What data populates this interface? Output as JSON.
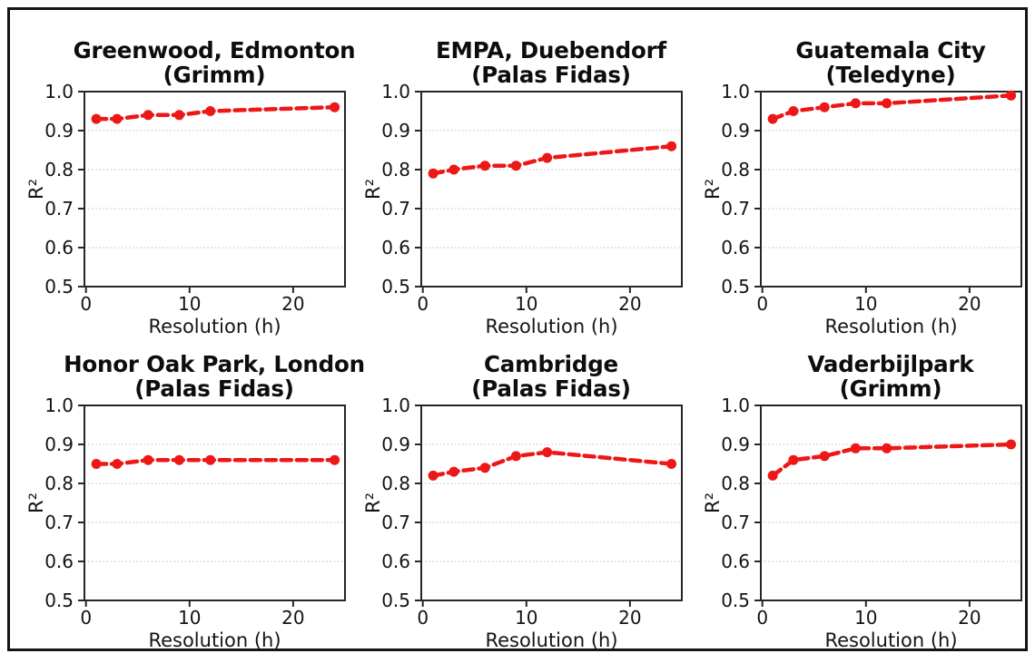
{
  "figure": {
    "background": "#ffffff",
    "border_color": "#141414",
    "line_color": "#ee1717",
    "grid_color": "#c9c9c9",
    "axis_color": "#262626",
    "text_color": "#141414",
    "xlabel": "Resolution (h)",
    "ylabel": "R²",
    "x_ticks": [
      0,
      10,
      20
    ],
    "x_tick_labels": [
      "0",
      "10",
      "20"
    ],
    "y_ticks": [
      0.5,
      0.6,
      0.7,
      0.8,
      0.9,
      1.0
    ],
    "y_tick_labels": [
      "0.5",
      "0.6",
      "0.7",
      "0.8",
      "0.9",
      "1.0"
    ],
    "xlim": [
      -0.15,
      25.0
    ],
    "ylim": [
      0.5,
      1.0
    ],
    "grid": "horizontal-dotted",
    "legend": "none",
    "layout": "2 rows x 3 columns"
  },
  "chart_data": [
    {
      "type": "line",
      "title_line1": "Greenwood, Edmonton",
      "title_line2": "(Grimm)",
      "xlabel": "Resolution (h)",
      "ylabel": "R²",
      "x": [
        1,
        3,
        6,
        9,
        12,
        24
      ],
      "y": [
        0.93,
        0.93,
        0.94,
        0.94,
        0.95,
        0.96
      ],
      "xlim": [
        -0.15,
        25.0
      ],
      "ylim": [
        0.5,
        1.0
      ],
      "line_style": "dashed",
      "marker": "circle",
      "color": "#ee1717"
    },
    {
      "type": "line",
      "title_line1": "EMPA, Duebendorf",
      "title_line2": "(Palas Fidas)",
      "xlabel": "Resolution (h)",
      "ylabel": "R²",
      "x": [
        1,
        3,
        6,
        9,
        12,
        24
      ],
      "y": [
        0.79,
        0.8,
        0.81,
        0.81,
        0.83,
        0.86
      ],
      "xlim": [
        -0.15,
        25.0
      ],
      "ylim": [
        0.5,
        1.0
      ],
      "line_style": "dashed",
      "marker": "circle",
      "color": "#ee1717"
    },
    {
      "type": "line",
      "title_line1": "Guatemala City",
      "title_line2": "(Teledyne)",
      "xlabel": "Resolution (h)",
      "ylabel": "R²",
      "x": [
        1,
        3,
        6,
        9,
        12,
        24
      ],
      "y": [
        0.93,
        0.95,
        0.96,
        0.97,
        0.97,
        0.99
      ],
      "xlim": [
        -0.15,
        25.0
      ],
      "ylim": [
        0.5,
        1.0
      ],
      "line_style": "dashed",
      "marker": "circle",
      "color": "#ee1717"
    },
    {
      "type": "line",
      "title_line1": "Honor Oak Park, London",
      "title_line2": "(Palas Fidas)",
      "xlabel": "Resolution (h)",
      "ylabel": "R²",
      "x": [
        1,
        3,
        6,
        9,
        12,
        24
      ],
      "y": [
        0.85,
        0.85,
        0.86,
        0.86,
        0.86,
        0.86
      ],
      "xlim": [
        -0.15,
        25.0
      ],
      "ylim": [
        0.5,
        1.0
      ],
      "line_style": "dashed",
      "marker": "circle",
      "color": "#ee1717"
    },
    {
      "type": "line",
      "title_line1": "Cambridge",
      "title_line2": "(Palas Fidas)",
      "xlabel": "Resolution (h)",
      "ylabel": "R²",
      "x": [
        1,
        3,
        6,
        9,
        12,
        24
      ],
      "y": [
        0.82,
        0.83,
        0.84,
        0.87,
        0.88,
        0.85
      ],
      "xlim": [
        -0.15,
        25.0
      ],
      "ylim": [
        0.5,
        1.0
      ],
      "line_style": "dashed",
      "marker": "circle",
      "color": "#ee1717"
    },
    {
      "type": "line",
      "title_line1": "Vaderbijlpark",
      "title_line2": "(Grimm)",
      "xlabel": "Resolution (h)",
      "ylabel": "R²",
      "x": [
        1,
        3,
        6,
        9,
        12,
        24
      ],
      "y": [
        0.82,
        0.86,
        0.87,
        0.89,
        0.89,
        0.9
      ],
      "xlim": [
        -0.15,
        25.0
      ],
      "ylim": [
        0.5,
        1.0
      ],
      "line_style": "dashed",
      "marker": "circle",
      "color": "#ee1717"
    }
  ]
}
